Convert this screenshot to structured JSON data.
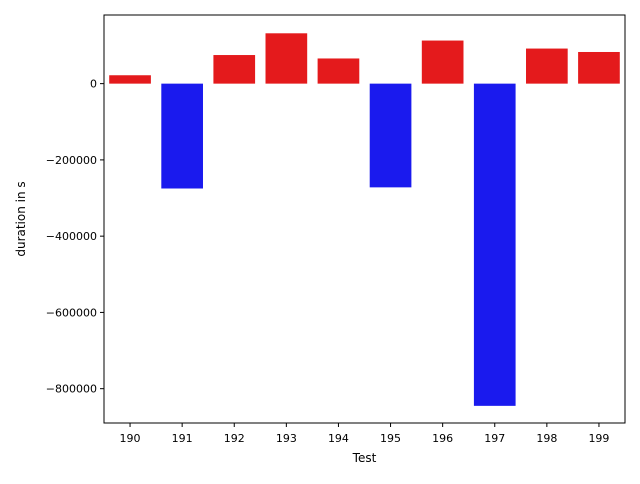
{
  "chart_data": {
    "type": "bar",
    "title": "",
    "xlabel": "Test",
    "ylabel": "duration in s",
    "categories": [
      "190",
      "191",
      "192",
      "193",
      "194",
      "195",
      "196",
      "197",
      "198",
      "199"
    ],
    "values": [
      22000,
      -275000,
      75000,
      132000,
      66000,
      -272000,
      113000,
      -845000,
      92000,
      83000
    ],
    "colors": [
      "#e41a1c",
      "#1a1aee",
      "#e41a1c",
      "#e41a1c",
      "#e41a1c",
      "#1a1aee",
      "#e41a1c",
      "#1a1aee",
      "#e41a1c",
      "#e41a1c"
    ],
    "ylim": [
      -890000,
      180000
    ],
    "yticks": [
      0,
      -200000,
      -400000,
      -600000,
      -800000
    ],
    "ytick_labels": [
      "0",
      "−200000",
      "−400000",
      "−600000",
      "−800000"
    ],
    "grid": false,
    "legend": "none",
    "positive_color": "#e41a1c",
    "negative_color": "#1a1aee"
  }
}
